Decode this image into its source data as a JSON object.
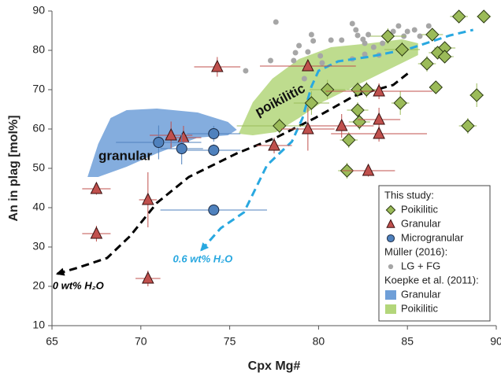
{
  "chart_data": {
    "type": "scatter",
    "xlabel": "Cpx Mg#",
    "ylabel": "An in plag [mol%]",
    "xlim": [
      65,
      90
    ],
    "xticks": [
      65,
      70,
      75,
      80,
      85,
      90
    ],
    "ylim": [
      10,
      90
    ],
    "yticks": [
      10,
      20,
      30,
      40,
      50,
      60,
      70,
      80,
      90
    ],
    "grid": false,
    "legend_position": "lower right",
    "annotations": [
      "granular",
      "poikilitic"
    ],
    "groups": [
      {
        "title": "This study:",
        "series": [
          {
            "name": "Poikilitic",
            "color": "#9bbb59",
            "marker": "diamond",
            "x": [
              87.9,
              89.3,
              86.4,
              87.1,
              86.7,
              87.1,
              86.1,
              86.6,
              88.9,
              88.4,
              84.7,
              83.9,
              84.6,
              80.5,
              79.6,
              77.8,
              82.2,
              82.7,
              82.2,
              82.3,
              81.7,
              81.6
            ],
            "y": [
              88.6,
              88.6,
              84.0,
              80.6,
              79.4,
              78.4,
              76.6,
              70.6,
              68.6,
              60.8,
              80.2,
              83.6,
              66.6,
              70.0,
              66.6,
              60.8,
              70.0,
              70.0,
              64.8,
              61.8,
              57.2,
              49.4
            ],
            "xerr": [
              0.5,
              0.4,
              0.6,
              0.6,
              0.5,
              0.5,
              0.5,
              0.3,
              0.4,
              0.5,
              1,
              1,
              0.5,
              1,
              1,
              2.4,
              0.6,
              0.6,
              0.6,
              0.6,
              0.5,
              0.5
            ],
            "yerr": [
              0,
              0,
              1.5,
              1.5,
              1.5,
              1.5,
              2,
              1,
              3,
              2,
              2,
              2,
              3,
              2.5,
              3,
              2,
              2,
              2,
              2,
              2,
              2,
              2
            ]
          },
          {
            "name": "Granular",
            "color": "#c0504d",
            "marker": "triangle",
            "x": [
              67.5,
              67.5,
              70.4,
              70.4,
              71.7,
              72.4,
              74.3,
              79.4,
              79.4,
              77.5,
              81.3,
              82.8,
              83.4,
              83.4,
              83.4
            ],
            "y": [
              44.8,
              33.4,
              42.0,
              22.0,
              58.4,
              57.8,
              75.8,
              76.0,
              60.0,
              55.8,
              60.8,
              49.4,
              69.6,
              62.4,
              58.8
            ],
            "xerr": [
              0.8,
              0.8,
              0.5,
              0.7,
              1.2,
              1,
              1.3,
              2.7,
              1.5,
              1,
              1.8,
              1.5,
              3,
              1.2,
              2.7
            ],
            "yerr": [
              1.5,
              2,
              7,
              2,
              3.5,
              3,
              2.5,
              1,
              5.5,
              2,
              3,
              1.5,
              2,
              3,
              2
            ]
          },
          {
            "name": "Microgranular",
            "color": "#4f81bd",
            "marker": "circle",
            "x": [
              71.0,
              74.1,
              72.3,
              74.1,
              74.1
            ],
            "y": [
              56.6,
              58.8,
              55.0,
              54.6,
              39.4
            ],
            "xerr": [
              2.4,
              1.5,
              1.2,
              1.5,
              3
            ],
            "yerr": [
              4.3,
              2,
              4,
              1.5,
              0
            ]
          }
        ]
      },
      {
        "title": "Müller (2016):",
        "series": [
          {
            "name": "LG + FG",
            "color": "#a6a6a6",
            "marker": "dot",
            "x": [
              77.6,
              75.9,
              77.3,
              78.6,
              79.6,
              79.7,
              79.4,
              80.1,
              80.7,
              81.3,
              81.9,
              82.1,
              82.2,
              82.5,
              82.6,
              82.8,
              83.1,
              83.4,
              83.6,
              83.9,
              84.2,
              84.5,
              84.8,
              85.0,
              85.4,
              85.7,
              86.2,
              81.9,
              82.6,
              78.7,
              80.2,
              79.2,
              78.9
            ],
            "y": [
              87.2,
              74.8,
              77.4,
              77.4,
              84.0,
              82.4,
              79.6,
              78.6,
              82.6,
              82.6,
              86.8,
              85.2,
              83.8,
              82.8,
              81.8,
              84.0,
              80.8,
              78.8,
              81.8,
              83.2,
              84.8,
              86.2,
              83.6,
              84.8,
              85.2,
              83.6,
              86.2,
              77.8,
              79.0,
              79.4,
              76.8,
              72.8,
              81.2
            ]
          }
        ]
      },
      {
        "title": "Koepke et al. (2011):",
        "regions": [
          {
            "name": "Granular",
            "color": "#6f9fd8",
            "x": [
              67.0,
              67.6,
              68.3,
              69.2,
              70.9,
              73.2,
              74.9,
              75.4,
              74.9,
              73.2,
              70.9,
              69.2,
              67.6
            ],
            "y": [
              47.8,
              56.2,
              62.8,
              64.8,
              65.2,
              64.2,
              61.8,
              59.8,
              58.4,
              57.8,
              53.8,
              50.4,
              47.8
            ]
          },
          {
            "name": "Poikilitic",
            "color": "#b3d67a",
            "x": [
              75.5,
              76.3,
              77.4,
              78.9,
              80.7,
              82.9,
              84.7,
              85.6,
              85.6,
              83.8,
              82.0,
              80.2,
              78.9,
              77.6,
              76.3
            ],
            "y": [
              58.8,
              66.8,
              72.8,
              77.8,
              80.8,
              81.8,
              82.8,
              81.8,
              78.8,
              74.8,
              70.8,
              66.8,
              62.8,
              59.2,
              58.4
            ]
          }
        ]
      }
    ],
    "curves": [
      {
        "name": "0 wt% H₂O",
        "color": "#000000",
        "x": [
          65.3,
          66.5,
          68.1,
          69.4,
          70.9,
          72.7,
          75.4,
          77.6,
          79.8,
          82.0,
          84.2,
          85.1
        ],
        "y": [
          23.2,
          24.8,
          27.2,
          32.8,
          41.2,
          47.8,
          53.8,
          57.8,
          62.8,
          68.4,
          71.2,
          74.4
        ]
      },
      {
        "name": "0.6 wt% H₂O",
        "color": "#29a8e0",
        "x": [
          73.4,
          74.5,
          75.8,
          77.1,
          78.5,
          79.1,
          79.6,
          80.0,
          81.1,
          82.9,
          85.1,
          87.4,
          88.7
        ],
        "y": [
          29.2,
          34.8,
          38.8,
          50.8,
          56.8,
          62.8,
          70.8,
          74.8,
          77.2,
          78.4,
          80.4,
          83.8,
          85.2
        ]
      }
    ]
  }
}
